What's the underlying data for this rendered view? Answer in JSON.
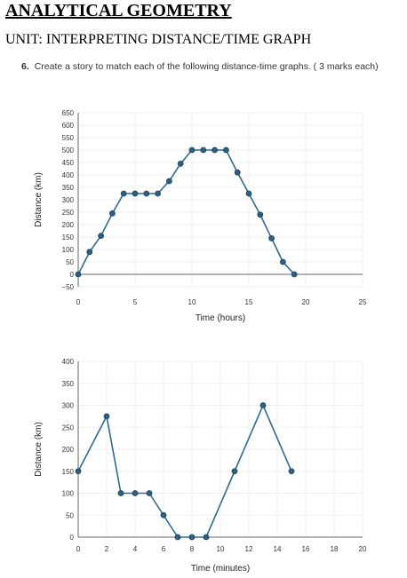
{
  "page": {
    "heading": "ANALYTICAL GEOMETRY",
    "unit": "UNIT: INTERPRETING DISTANCE/TIME GRAPH",
    "question_number": "6.",
    "question_text": "Create a story to match each of the following distance-time graphs. ( 3 marks each)"
  },
  "colors": {
    "line": "#2f6a8f",
    "marker": "#2f5f80",
    "grid": "#efefef",
    "axis": "#666666"
  },
  "chart_data": [
    {
      "type": "line",
      "title": "",
      "xlabel": "Time (hours)",
      "ylabel": "Distance (km)",
      "xlim": [
        0,
        25
      ],
      "ylim": [
        -50,
        650
      ],
      "xticks": [
        0,
        5,
        10,
        15,
        20,
        25
      ],
      "yticks": [
        -50,
        0,
        50,
        100,
        150,
        200,
        250,
        300,
        350,
        400,
        450,
        500,
        550,
        600,
        650
      ],
      "grid": true,
      "x": [
        0,
        1,
        2,
        3,
        4,
        5,
        6,
        7,
        8,
        9,
        10,
        11,
        12,
        13,
        14,
        15,
        16,
        17,
        18,
        19
      ],
      "y": [
        0,
        90,
        155,
        245,
        325,
        325,
        325,
        325,
        375,
        445,
        500,
        500,
        500,
        500,
        410,
        325,
        240,
        145,
        50,
        0
      ]
    },
    {
      "type": "line",
      "title": "",
      "xlabel": "Time (minutes)",
      "ylabel": "Distance (km)",
      "xlim": [
        0,
        20
      ],
      "ylim": [
        0,
        400
      ],
      "xticks": [
        0,
        2,
        4,
        6,
        8,
        10,
        12,
        14,
        16,
        18,
        20
      ],
      "yticks": [
        0,
        50,
        100,
        150,
        200,
        250,
        300,
        350,
        400
      ],
      "grid": true,
      "x": [
        0,
        2,
        3,
        4,
        5,
        6,
        7,
        8,
        9,
        11,
        13,
        15
      ],
      "y": [
        150,
        275,
        100,
        100,
        100,
        50,
        0,
        0,
        0,
        150,
        300,
        150
      ]
    }
  ]
}
